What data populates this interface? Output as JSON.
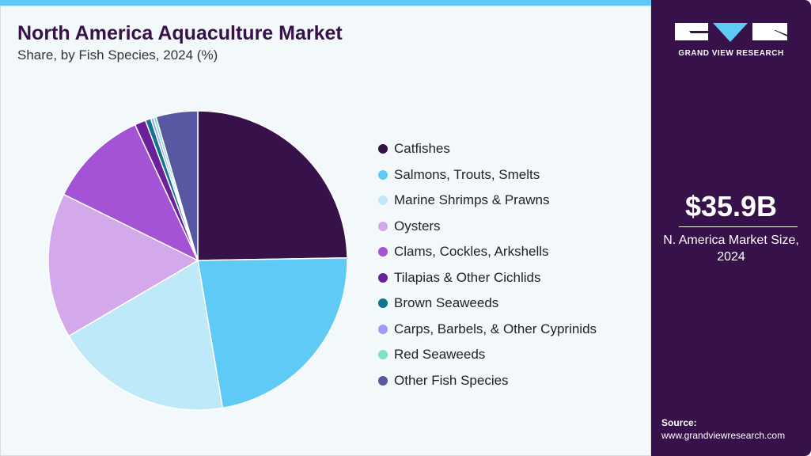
{
  "header": {
    "title": "North America Aquaculture Market",
    "subtitle": "Share, by Fish Species, 2024 (%)"
  },
  "chart_data": {
    "type": "pie",
    "title": "North America Aquaculture Market",
    "subtitle": "Share, by Fish Species, 2024 (%)",
    "legend_position": "right",
    "categories": [
      "Catfishes",
      "Salmons, Trouts, Smelts",
      "Marine Shrimps & Prawns",
      "Oysters",
      "Clams, Cockles, Arkshells",
      "Tilapias & Other Cichlids",
      "Brown Seaweeds",
      "Carps, Barbels, & Other Cyprinids",
      "Red Seaweeds",
      "Other Fish Species"
    ],
    "values": [
      24.7,
      22.6,
      19.2,
      15.7,
      10.8,
      1.2,
      0.6,
      0.3,
      0.3,
      4.5
    ],
    "colors": [
      "#371149",
      "#5ecaf5",
      "#bde9f9",
      "#d4a9ec",
      "#a452d6",
      "#6c1f9a",
      "#0e7490",
      "#9d9cf7",
      "#7ee0c4",
      "#5858a2"
    ]
  },
  "sidebar": {
    "brand": "GRAND VIEW RESEARCH",
    "market_size": "$35.9B",
    "caption_line1": "N. America Market Size,",
    "caption_line2": "2024",
    "source_label": "Source:",
    "source_url": "www.grandviewresearch.com"
  }
}
